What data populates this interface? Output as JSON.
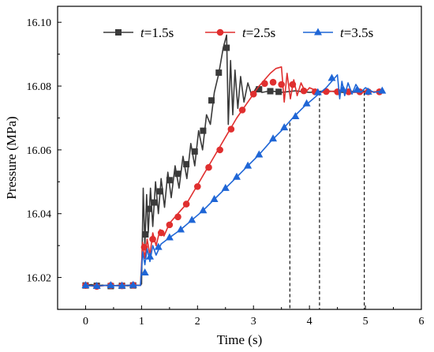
{
  "chart_data": {
    "type": "line",
    "xlabel": "Time (s)",
    "ylabel": "Pressure (MPa)",
    "xlim": [
      -0.5,
      6
    ],
    "ylim": [
      16.01,
      16.105
    ],
    "xticks": [
      0,
      1,
      2,
      3,
      4,
      5,
      6
    ],
    "xtick_labels": [
      "0",
      "1",
      "2",
      "3",
      "4",
      "5",
      "6"
    ],
    "yticks": [
      16.02,
      16.04,
      16.06,
      16.08,
      16.1
    ],
    "ytick_labels": [
      "16.02",
      "16.04",
      "16.06",
      "16.08",
      "16.10"
    ],
    "grid": false,
    "legend_position": "top-center",
    "series": [
      {
        "legend_italic": "t",
        "legend_rest": "=1.5s",
        "color": "#3a3a3a",
        "marker": "square",
        "points": [
          [
            0,
            16.0175
          ],
          [
            0.1,
            16.0178
          ],
          [
            0.2,
            16.0174
          ],
          [
            0.3,
            16.0176
          ],
          [
            0.45,
            16.0173
          ],
          [
            0.6,
            16.0176
          ],
          [
            0.75,
            16.0174
          ],
          [
            0.9,
            16.0176
          ],
          [
            0.98,
            16.0175
          ],
          [
            1.0,
            16.018
          ],
          [
            1.03,
            16.048
          ],
          [
            1.06,
            16.03
          ],
          [
            1.09,
            16.046
          ],
          [
            1.12,
            16.034
          ],
          [
            1.16,
            16.048
          ],
          [
            1.2,
            16.036
          ],
          [
            1.25,
            16.05
          ],
          [
            1.3,
            16.04
          ],
          [
            1.35,
            16.051
          ],
          [
            1.41,
            16.042
          ],
          [
            1.47,
            16.053
          ],
          [
            1.53,
            16.045
          ],
          [
            1.6,
            16.055
          ],
          [
            1.67,
            16.048
          ],
          [
            1.74,
            16.058
          ],
          [
            1.81,
            16.051
          ],
          [
            1.88,
            16.062
          ],
          [
            1.95,
            16.055
          ],
          [
            2.02,
            16.066
          ],
          [
            2.09,
            16.06
          ],
          [
            2.16,
            16.071
          ],
          [
            2.23,
            16.068
          ],
          [
            2.3,
            16.078
          ],
          [
            2.38,
            16.084
          ],
          [
            2.46,
            16.092
          ],
          [
            2.52,
            16.096
          ],
          [
            2.55,
            16.068
          ],
          [
            2.59,
            16.088
          ],
          [
            2.63,
            16.071
          ],
          [
            2.67,
            16.085
          ],
          [
            2.72,
            16.073
          ],
          [
            2.77,
            16.083
          ],
          [
            2.83,
            16.075
          ],
          [
            2.9,
            16.081
          ],
          [
            2.97,
            16.077
          ],
          [
            3.05,
            16.0795
          ],
          [
            3.15,
            16.078
          ],
          [
            3.3,
            16.0785
          ],
          [
            3.5,
            16.078
          ],
          [
            3.75,
            16.0785
          ],
          [
            4.0,
            16.078
          ],
          [
            4.3,
            16.0785
          ],
          [
            4.6,
            16.078
          ],
          [
            4.9,
            16.0785
          ],
          [
            5.3,
            16.078
          ]
        ],
        "marker_points": [
          [
            0,
            16.0175
          ],
          [
            0.2,
            16.0174
          ],
          [
            0.45,
            16.0173
          ],
          [
            0.65,
            16.0174
          ],
          [
            0.85,
            16.0175
          ],
          [
            1.07,
            16.0335
          ],
          [
            1.13,
            16.0415
          ],
          [
            1.22,
            16.0435
          ],
          [
            1.33,
            16.047
          ],
          [
            1.5,
            16.0505
          ],
          [
            1.65,
            16.0525
          ],
          [
            1.8,
            16.0555
          ],
          [
            1.95,
            16.0595
          ],
          [
            2.1,
            16.066
          ],
          [
            2.25,
            16.0755
          ],
          [
            2.38,
            16.0842
          ],
          [
            2.52,
            16.092
          ],
          [
            3.1,
            16.079
          ],
          [
            3.3,
            16.0784
          ],
          [
            3.45,
            16.0782
          ]
        ]
      },
      {
        "legend_italic": "t",
        "legend_rest": "=2.5s",
        "color": "#e02f2f",
        "marker": "circle",
        "points": [
          [
            0,
            16.0175
          ],
          [
            0.2,
            16.0172
          ],
          [
            0.4,
            16.0176
          ],
          [
            0.6,
            16.0174
          ],
          [
            0.8,
            16.0176
          ],
          [
            0.98,
            16.0175
          ],
          [
            1.02,
            16.031
          ],
          [
            1.06,
            16.026
          ],
          [
            1.1,
            16.032
          ],
          [
            1.15,
            16.027
          ],
          [
            1.2,
            16.034
          ],
          [
            1.26,
            16.03
          ],
          [
            1.33,
            16.035
          ],
          [
            1.4,
            16.033
          ],
          [
            1.5,
            16.037
          ],
          [
            1.6,
            16.039
          ],
          [
            1.7,
            16.041
          ],
          [
            1.8,
            16.043
          ],
          [
            1.9,
            16.046
          ],
          [
            2.0,
            16.049
          ],
          [
            2.1,
            16.052
          ],
          [
            2.2,
            16.055
          ],
          [
            2.3,
            16.058
          ],
          [
            2.4,
            16.061
          ],
          [
            2.5,
            16.064
          ],
          [
            2.6,
            16.067
          ],
          [
            2.7,
            16.07
          ],
          [
            2.8,
            16.0725
          ],
          [
            2.9,
            16.075
          ],
          [
            3.0,
            16.0775
          ],
          [
            3.1,
            16.08
          ],
          [
            3.2,
            16.082
          ],
          [
            3.3,
            16.084
          ],
          [
            3.4,
            16.0855
          ],
          [
            3.5,
            16.086
          ],
          [
            3.55,
            16.075
          ],
          [
            3.6,
            16.084
          ],
          [
            3.66,
            16.076
          ],
          [
            3.72,
            16.082
          ],
          [
            3.78,
            16.077
          ],
          [
            3.85,
            16.081
          ],
          [
            3.93,
            16.078
          ],
          [
            4.0,
            16.0795
          ],
          [
            4.2,
            16.078
          ],
          [
            4.5,
            16.0785
          ],
          [
            4.8,
            16.078
          ],
          [
            5.3,
            16.0783
          ]
        ],
        "marker_points": [
          [
            0,
            16.0175
          ],
          [
            0.2,
            16.0172
          ],
          [
            0.45,
            16.0175
          ],
          [
            0.65,
            16.0174
          ],
          [
            0.85,
            16.0176
          ],
          [
            1.05,
            16.0295
          ],
          [
            1.2,
            16.032
          ],
          [
            1.35,
            16.034
          ],
          [
            1.5,
            16.0365
          ],
          [
            1.65,
            16.039
          ],
          [
            1.8,
            16.043
          ],
          [
            2.0,
            16.0485
          ],
          [
            2.2,
            16.0545
          ],
          [
            2.4,
            16.06
          ],
          [
            2.6,
            16.0665
          ],
          [
            2.8,
            16.0725
          ],
          [
            3.0,
            16.0775
          ],
          [
            3.2,
            16.0808
          ],
          [
            3.35,
            16.0812
          ],
          [
            3.5,
            16.0805
          ],
          [
            3.7,
            16.0805
          ],
          [
            3.9,
            16.0785
          ],
          [
            4.1,
            16.0782
          ],
          [
            4.3,
            16.0783
          ],
          [
            4.5,
            16.0782
          ],
          [
            4.7,
            16.0782
          ],
          [
            4.9,
            16.0782
          ],
          [
            5.05,
            16.0782
          ],
          [
            5.25,
            16.0782
          ]
        ]
      },
      {
        "legend_italic": "t",
        "legend_rest": "=3.5s",
        "color": "#1f66d6",
        "marker": "triangle",
        "points": [
          [
            0,
            16.0175
          ],
          [
            0.2,
            16.0173
          ],
          [
            0.4,
            16.0176
          ],
          [
            0.6,
            16.0174
          ],
          [
            0.8,
            16.0176
          ],
          [
            0.98,
            16.0175
          ],
          [
            1.02,
            16.028
          ],
          [
            1.06,
            16.024
          ],
          [
            1.1,
            16.029
          ],
          [
            1.15,
            16.025
          ],
          [
            1.2,
            16.03
          ],
          [
            1.26,
            16.027
          ],
          [
            1.35,
            16.0305
          ],
          [
            1.5,
            16.0325
          ],
          [
            1.7,
            16.035
          ],
          [
            1.9,
            16.038
          ],
          [
            2.1,
            16.041
          ],
          [
            2.3,
            16.0445
          ],
          [
            2.5,
            16.048
          ],
          [
            2.7,
            16.0515
          ],
          [
            2.9,
            16.055
          ],
          [
            3.1,
            16.0585
          ],
          [
            3.3,
            16.0625
          ],
          [
            3.5,
            16.066
          ],
          [
            3.7,
            16.07
          ],
          [
            3.9,
            16.0735
          ],
          [
            4.1,
            16.0765
          ],
          [
            4.3,
            16.0795
          ],
          [
            4.45,
            16.0825
          ],
          [
            4.5,
            16.0835
          ],
          [
            4.54,
            16.076
          ],
          [
            4.58,
            16.0815
          ],
          [
            4.63,
            16.077
          ],
          [
            4.69,
            16.081
          ],
          [
            4.76,
            16.0775
          ],
          [
            4.83,
            16.0805
          ],
          [
            4.92,
            16.078
          ],
          [
            5.0,
            16.0795
          ],
          [
            5.15,
            16.078
          ],
          [
            5.3,
            16.0785
          ]
        ],
        "marker_points": [
          [
            0,
            16.0175
          ],
          [
            0.2,
            16.0173
          ],
          [
            0.45,
            16.0175
          ],
          [
            0.65,
            16.0174
          ],
          [
            0.85,
            16.0176
          ],
          [
            1.06,
            16.0215
          ],
          [
            1.15,
            16.0265
          ],
          [
            1.3,
            16.0295
          ],
          [
            1.5,
            16.0325
          ],
          [
            1.7,
            16.035
          ],
          [
            1.9,
            16.038
          ],
          [
            2.1,
            16.041
          ],
          [
            2.3,
            16.0445
          ],
          [
            2.5,
            16.048
          ],
          [
            2.7,
            16.0515
          ],
          [
            2.9,
            16.055
          ],
          [
            3.1,
            16.0585
          ],
          [
            3.35,
            16.0635
          ],
          [
            3.55,
            16.067
          ],
          [
            3.75,
            16.0705
          ],
          [
            3.95,
            16.0745
          ],
          [
            4.15,
            16.078
          ],
          [
            4.4,
            16.0825
          ],
          [
            4.6,
            16.079
          ],
          [
            4.85,
            16.0788
          ],
          [
            5.05,
            16.0782
          ],
          [
            5.3,
            16.0785
          ]
        ]
      }
    ],
    "reference_lines": [
      {
        "x": 3.65,
        "y_top": 16.0685
      },
      {
        "x": 4.18,
        "y_top": 16.078
      },
      {
        "x": 4.98,
        "y_top": 16.078
      }
    ]
  }
}
